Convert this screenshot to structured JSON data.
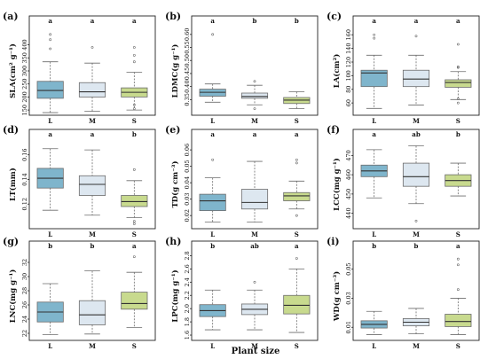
{
  "figure": {
    "xlabel": "Plant size"
  },
  "colors": {
    "L": "#7fb5cc",
    "M": "#dde7f0",
    "S": "#c8da8e",
    "stroke": "#6b6b6b",
    "frame": "#222222"
  },
  "chart_data": [
    {
      "type": "box",
      "panel": "(a)",
      "ylabel": "SLA(cm² g⁻¹)",
      "categories": [
        "L",
        "M",
        "S"
      ],
      "ylim": [
        130,
        470
      ],
      "yticks": [
        150,
        200,
        250,
        300,
        350,
        400
      ],
      "letters": [
        "a",
        "a",
        "a"
      ],
      "boxes": [
        {
          "whislo": 140,
          "q1": 195,
          "med": 225,
          "q3": 260,
          "whishi": 335,
          "fliers": [
            385,
            420,
            440
          ]
        },
        {
          "whislo": 145,
          "q1": 200,
          "med": 220,
          "q3": 255,
          "whishi": 330,
          "fliers": [
            390
          ]
        },
        {
          "whislo": 150,
          "q1": 200,
          "med": 218,
          "q3": 235,
          "whishi": 295,
          "fliers": [
            335,
            360,
            390,
            155,
            170
          ]
        }
      ]
    },
    {
      "type": "box",
      "panel": "(b)",
      "ylabel": "LDMC(g g⁻¹)",
      "categories": [
        "L",
        "M",
        "S"
      ],
      "ylim": [
        0.29,
        0.63
      ],
      "yticks": [
        0.35,
        0.4,
        0.45,
        0.5,
        0.55,
        0.6
      ],
      "letters": [
        "a",
        "b",
        "b"
      ],
      "boxes": [
        {
          "whislo": 0.34,
          "q1": 0.363,
          "med": 0.378,
          "q3": 0.39,
          "whishi": 0.41,
          "fliers": [
            0.6
          ]
        },
        {
          "whislo": 0.33,
          "q1": 0.355,
          "med": 0.362,
          "q3": 0.375,
          "whishi": 0.405,
          "fliers": [
            0.42,
            0.315
          ]
        },
        {
          "whislo": 0.315,
          "q1": 0.335,
          "med": 0.348,
          "q3": 0.358,
          "whishi": 0.38,
          "fliers": []
        }
      ]
    },
    {
      "type": "box",
      "panel": "(c)",
      "ylabel": "LA(cm²)",
      "categories": [
        "L",
        "M",
        "S"
      ],
      "ylim": [
        42,
        172
      ],
      "yticks": [
        60,
        80,
        100,
        120,
        140,
        160
      ],
      "letters": [
        "a",
        "a",
        "a"
      ],
      "boxes": [
        {
          "whislo": 52,
          "q1": 84,
          "med": 104,
          "q3": 108,
          "whishi": 130,
          "fliers": [
            155,
            160
          ]
        },
        {
          "whislo": 57,
          "q1": 84,
          "med": 95,
          "q3": 108,
          "whishi": 130,
          "fliers": [
            158
          ]
        },
        {
          "whislo": 65,
          "q1": 83,
          "med": 90,
          "q3": 94,
          "whishi": 106,
          "fliers": [
            146,
            112,
            113,
            66,
            60
          ]
        }
      ]
    },
    {
      "type": "box",
      "panel": "(d)",
      "ylabel": "LT(mm)",
      "categories": [
        "L",
        "M",
        "S"
      ],
      "ylim": [
        0.1,
        0.172
      ],
      "yticks": [
        0.12,
        0.14,
        0.16
      ],
      "letters": [
        "a",
        "a",
        "b"
      ],
      "boxes": [
        {
          "whislo": 0.115,
          "q1": 0.133,
          "med": 0.141,
          "q3": 0.149,
          "whishi": 0.165,
          "fliers": []
        },
        {
          "whislo": 0.111,
          "q1": 0.127,
          "med": 0.136,
          "q3": 0.143,
          "whishi": 0.164,
          "fliers": []
        },
        {
          "whislo": 0.109,
          "q1": 0.118,
          "med": 0.122,
          "q3": 0.127,
          "whishi": 0.139,
          "fliers": [
            0.148,
            0.106,
            0.104
          ]
        }
      ]
    },
    {
      "type": "box",
      "panel": "(e)",
      "ylabel": "TD(g cm⁻³)",
      "categories": [
        "L",
        "M",
        "S"
      ],
      "ylim": [
        0.012,
        0.066
      ],
      "yticks": [
        0.02,
        0.03,
        0.04,
        0.05,
        0.06
      ],
      "letters": [
        "a",
        "a",
        "a"
      ],
      "boxes": [
        {
          "whislo": 0.016,
          "q1": 0.023,
          "med": 0.029,
          "q3": 0.033,
          "whishi": 0.043,
          "fliers": [
            0.054
          ]
        },
        {
          "whislo": 0.016,
          "q1": 0.024,
          "med": 0.028,
          "q3": 0.036,
          "whishi": 0.053,
          "fliers": []
        },
        {
          "whislo": 0.024,
          "q1": 0.029,
          "med": 0.032,
          "q3": 0.034,
          "whishi": 0.041,
          "fliers": [
            0.052,
            0.054,
            0.02
          ]
        }
      ]
    },
    {
      "type": "box",
      "panel": "(f)",
      "ylabel": "LCC(mg g⁻¹)",
      "categories": [
        "L",
        "M",
        "S"
      ],
      "ylim": [
        432,
        478
      ],
      "yticks": [
        440,
        450,
        460,
        470
      ],
      "letters": [
        "a",
        "ab",
        "b"
      ],
      "boxes": [
        {
          "whislo": 448,
          "q1": 459,
          "med": 462,
          "q3": 465,
          "whishi": 473,
          "fliers": []
        },
        {
          "whislo": 445,
          "q1": 454,
          "med": 459,
          "q3": 466,
          "whishi": 475,
          "fliers": [
            436
          ]
        },
        {
          "whislo": 449,
          "q1": 454,
          "med": 457,
          "q3": 460,
          "whishi": 466,
          "fliers": []
        }
      ]
    },
    {
      "type": "box",
      "panel": "(g)",
      "ylabel": "LNC(mg g⁻¹)",
      "categories": [
        "L",
        "M",
        "S"
      ],
      "ylim": [
        21.0,
        33.5
      ],
      "yticks": [
        22,
        24,
        26,
        28,
        30,
        32
      ],
      "letters": [
        "b",
        "b",
        "a"
      ],
      "boxes": [
        {
          "whislo": 21.8,
          "q1": 23.6,
          "med": 25.0,
          "q3": 26.4,
          "whishi": 29.0,
          "fliers": []
        },
        {
          "whislo": 21.9,
          "q1": 23.2,
          "med": 24.6,
          "q3": 26.6,
          "whishi": 30.8,
          "fliers": []
        },
        {
          "whislo": 22.8,
          "q1": 25.4,
          "med": 26.2,
          "q3": 27.8,
          "whishi": 30.6,
          "fliers": [
            32.8
          ]
        }
      ]
    },
    {
      "type": "box",
      "panel": "(h)",
      "ylabel": "LPC(mg g⁻¹)",
      "categories": [
        "L",
        "M",
        "S"
      ],
      "ylim": [
        1.52,
        2.86
      ],
      "yticks": [
        1.6,
        1.8,
        2.0,
        2.2,
        2.4,
        2.6,
        2.8
      ],
      "letters": [
        "b",
        "ab",
        "a"
      ],
      "boxes": [
        {
          "whislo": 1.68,
          "q1": 1.88,
          "med": 1.97,
          "q3": 2.06,
          "whishi": 2.28,
          "fliers": []
        },
        {
          "whislo": 1.68,
          "q1": 1.91,
          "med": 1.99,
          "q3": 2.07,
          "whishi": 2.28,
          "fliers": [
            2.4
          ]
        },
        {
          "whislo": 1.64,
          "q1": 1.92,
          "med": 2.05,
          "q3": 2.2,
          "whishi": 2.6,
          "fliers": [
            2.76
          ]
        }
      ]
    },
    {
      "type": "box",
      "panel": "(i)",
      "ylabel": "WD(g cm⁻³)",
      "categories": [
        "L",
        "M",
        "S"
      ],
      "ylim": [
        0.001,
        0.062
      ],
      "yticks": [
        0.01,
        0.03,
        0.05
      ],
      "letters": [
        "b",
        "b",
        "a"
      ],
      "boxes": [
        {
          "whislo": 0.005,
          "q1": 0.0095,
          "med": 0.012,
          "q3": 0.0145,
          "whishi": 0.021,
          "fliers": []
        },
        {
          "whislo": 0.0055,
          "q1": 0.011,
          "med": 0.0135,
          "q3": 0.016,
          "whishi": 0.023,
          "fliers": []
        },
        {
          "whislo": 0.005,
          "q1": 0.0105,
          "med": 0.014,
          "q3": 0.019,
          "whishi": 0.03,
          "fliers": [
            0.036,
            0.053,
            0.057
          ]
        }
      ]
    }
  ]
}
